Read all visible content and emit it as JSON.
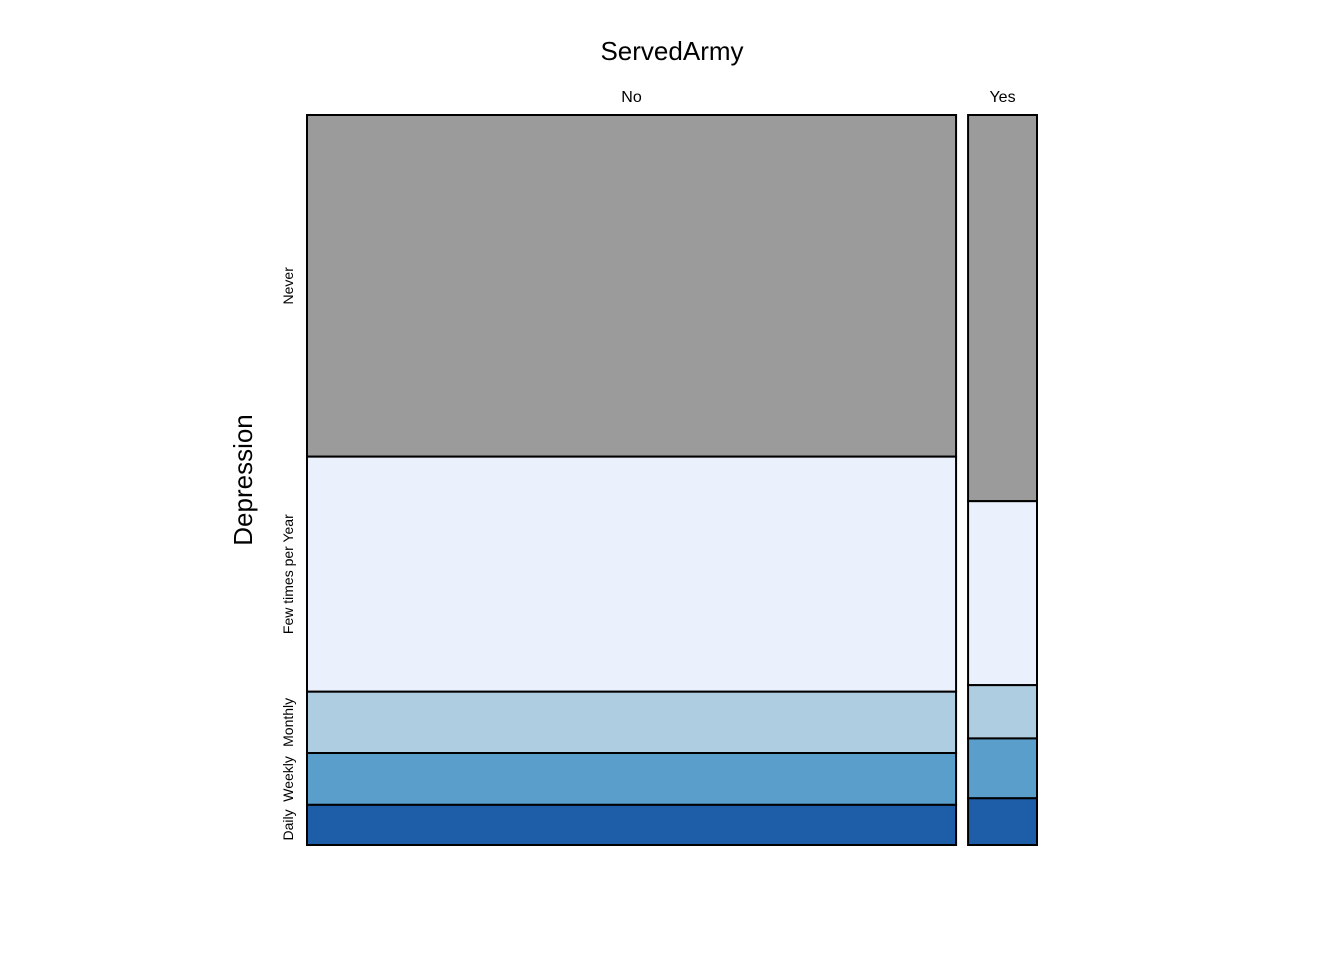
{
  "chart_data": {
    "type": "mosaic",
    "title": "ServedArmy",
    "xlabel": "ServedArmy",
    "ylabel": "Depression",
    "columns": [
      {
        "label": "No",
        "weight": 0.904,
        "proportions": [
          0.468,
          0.322,
          0.084,
          0.071,
          0.055
        ]
      },
      {
        "label": "Yes",
        "weight": 0.096,
        "proportions": [
          0.529,
          0.252,
          0.073,
          0.082,
          0.064
        ]
      }
    ],
    "rows": [
      "Never",
      "Few times per Year",
      "Monthly",
      "Weekly",
      "Daily"
    ],
    "colors": [
      "#9b9b9b",
      "#eaf0fc",
      "#aecde1",
      "#5a9fcc",
      "#1e5ea8"
    ]
  }
}
